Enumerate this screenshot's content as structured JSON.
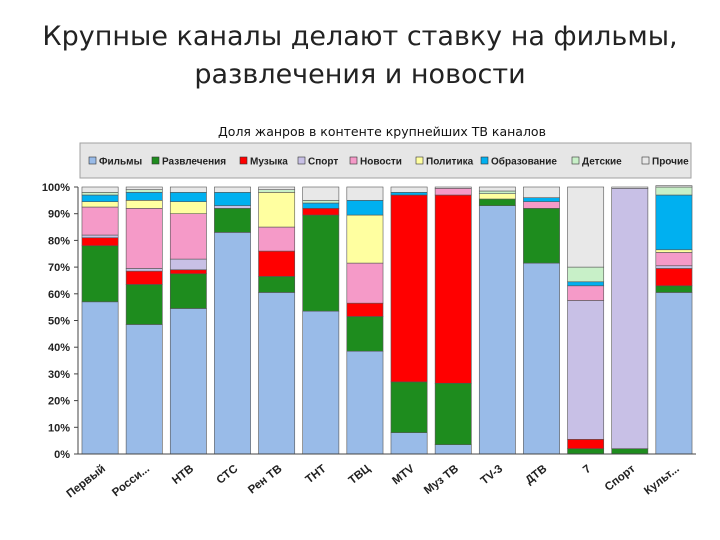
{
  "slide": {
    "title_line1": "Крупные каналы делают ставку на фильмы,",
    "title_line2": "развлечения и новости"
  },
  "chart_data": {
    "type": "bar",
    "stacked": true,
    "title": "Доля жанров в контенте крупнейших ТВ каналов",
    "xlabel": "",
    "ylabel": "",
    "ylim": [
      0,
      100
    ],
    "ytick_labels": [
      "0%",
      "10%",
      "20%",
      "30%",
      "40%",
      "50%",
      "60%",
      "70%",
      "80%",
      "90%",
      "100%"
    ],
    "grid": false,
    "legend_position": "top",
    "categories": [
      "Первый",
      "Росси...",
      "НТВ",
      "СТС",
      "Рен ТВ",
      "ТНТ",
      "ТВЦ",
      "MTV",
      "Муз ТВ",
      "ТV-3",
      "ДТВ",
      "7",
      "Спорт",
      "Культ..."
    ],
    "series": [
      {
        "name": "Фильмы",
        "color": "#99bbe8",
        "values": [
          57,
          48.5,
          54.5,
          83,
          60.5,
          53.5,
          38.5,
          8,
          3.5,
          93,
          71.5,
          0,
          0,
          60.5
        ]
      },
      {
        "name": "Развлечения",
        "color": "#1e8c1e",
        "values": [
          21,
          15,
          13,
          9,
          6,
          36,
          13,
          19,
          23,
          2.5,
          20.5,
          2,
          2,
          2.5
        ]
      },
      {
        "name": "Музыка",
        "color": "#ff0000",
        "values": [
          3,
          5,
          1.5,
          0,
          9.5,
          2.5,
          5,
          70,
          70.5,
          0,
          0,
          3.5,
          0,
          6.5
        ]
      },
      {
        "name": "Спорт",
        "color": "#c8c0e6",
        "values": [
          1,
          1,
          4,
          1,
          0,
          0,
          0,
          0,
          0,
          0,
          0,
          52,
          97.5,
          1
        ]
      },
      {
        "name": "Новости",
        "color": "#f59ac8",
        "values": [
          10.5,
          22.5,
          17,
          0,
          9,
          0,
          15,
          0,
          2.5,
          0,
          2.5,
          5.5,
          0,
          5
        ]
      },
      {
        "name": "Политика",
        "color": "#ffffa0",
        "values": [
          2,
          3,
          4.5,
          0,
          13,
          0,
          18,
          0,
          0,
          2,
          0,
          0,
          0,
          1
        ]
      },
      {
        "name": "Образование",
        "color": "#00b0f0",
        "values": [
          2.5,
          3,
          3.5,
          5,
          0,
          2,
          5.5,
          1,
          0,
          0,
          1.5,
          1.5,
          0,
          20.5
        ]
      },
      {
        "name": "Детские",
        "color": "#c8f0c8",
        "values": [
          1,
          1,
          0,
          0,
          1,
          1,
          0,
          0,
          0,
          1,
          0,
          5.5,
          0,
          3
        ]
      },
      {
        "name": "Прочие",
        "color": "#e8e8e8",
        "values": [
          2,
          1,
          2,
          2,
          1,
          5,
          5,
          2,
          0.5,
          1.5,
          4,
          30,
          0.5,
          0.5
        ]
      }
    ]
  }
}
